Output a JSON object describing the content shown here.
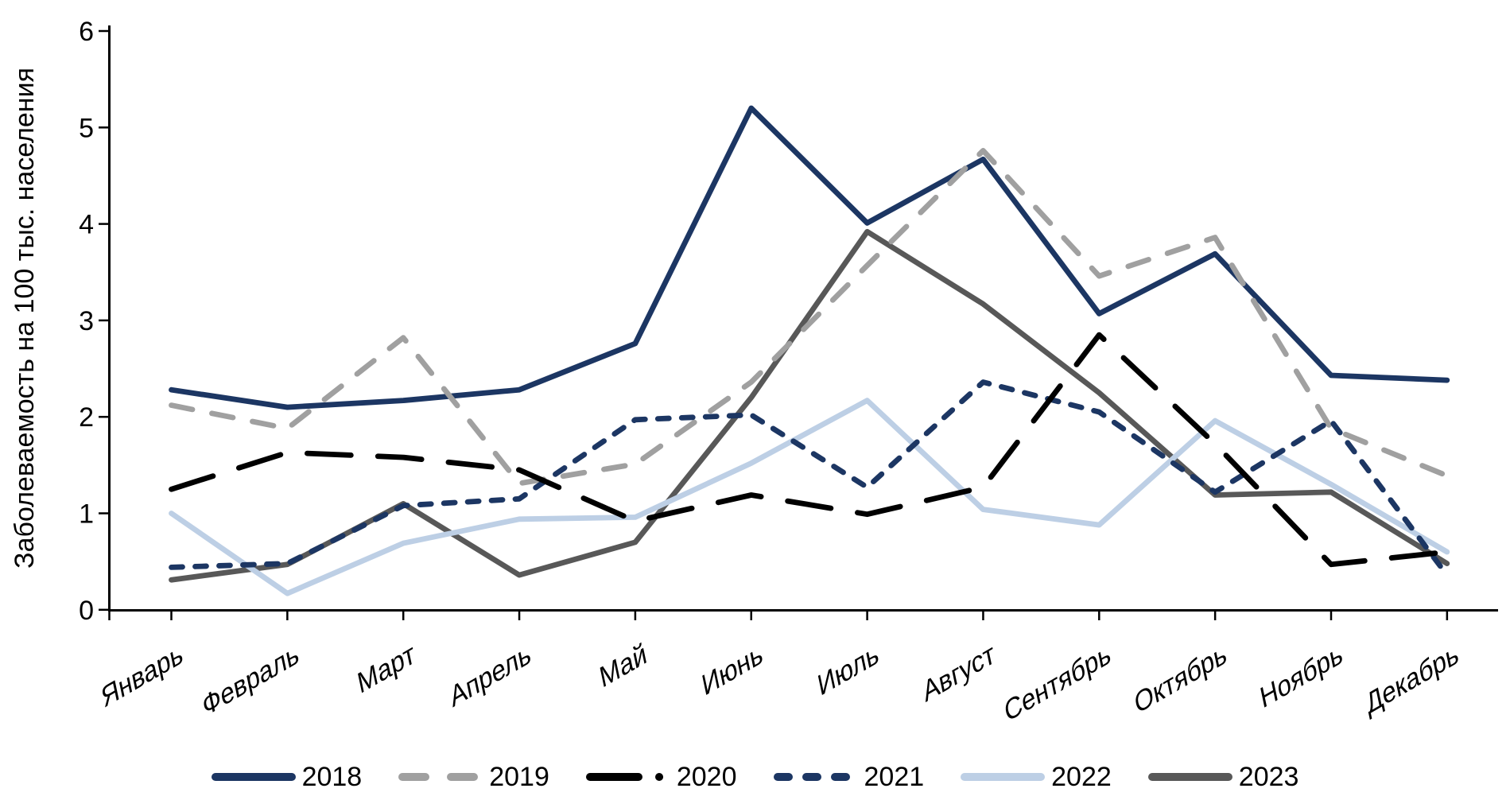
{
  "chart_data": {
    "type": "line",
    "title": "",
    "xlabel": "",
    "ylabel": "Заболеваемость на 100 тыс. населения",
    "ylim": [
      0,
      6
    ],
    "y_ticks": [
      "0",
      "1",
      "2",
      "3",
      "4",
      "5",
      "6"
    ],
    "grid": false,
    "legend_position": "bottom",
    "categories": [
      "Январь",
      "Февраль",
      "Март",
      "Апрель",
      "Май",
      "Июнь",
      "Июль",
      "Август",
      "Сентябрь",
      "Октябрь",
      "Ноябрь",
      "Декабрь"
    ],
    "series": [
      {
        "name": "2018",
        "color": "#1c3663",
        "line_style": "solid",
        "values": [
          2.28,
          2.1,
          2.17,
          2.28,
          2.76,
          5.2,
          4.01,
          4.67,
          3.07,
          3.69,
          2.43,
          2.38
        ]
      },
      {
        "name": "2019",
        "color": "#a0a0a0",
        "line_style": "dash",
        "values": [
          2.12,
          1.88,
          2.82,
          1.31,
          1.51,
          2.36,
          3.57,
          4.76,
          3.46,
          3.86,
          1.88,
          1.39
        ]
      },
      {
        "name": "2020",
        "color": "#000000",
        "line_style": "long-dash",
        "values": [
          1.25,
          1.63,
          1.58,
          1.45,
          0.92,
          1.19,
          0.99,
          1.27,
          2.85,
          1.72,
          0.47,
          0.6
        ]
      },
      {
        "name": "2021",
        "color": "#1c3663",
        "line_style": "short-dash",
        "values": [
          0.44,
          0.48,
          1.08,
          1.15,
          1.97,
          2.02,
          1.27,
          2.36,
          2.05,
          1.22,
          1.96,
          0.36
        ]
      },
      {
        "name": "2022",
        "color": "#bdcfe5",
        "line_style": "solid",
        "values": [
          1.0,
          0.17,
          0.69,
          0.94,
          0.96,
          1.52,
          2.17,
          1.04,
          0.88,
          1.96,
          1.3,
          0.6
        ]
      },
      {
        "name": "2023",
        "color": "#585858",
        "line_style": "solid",
        "values": [
          0.31,
          0.47,
          1.1,
          0.36,
          0.7,
          2.2,
          3.92,
          3.17,
          2.25,
          1.19,
          1.22,
          0.48
        ]
      }
    ]
  }
}
